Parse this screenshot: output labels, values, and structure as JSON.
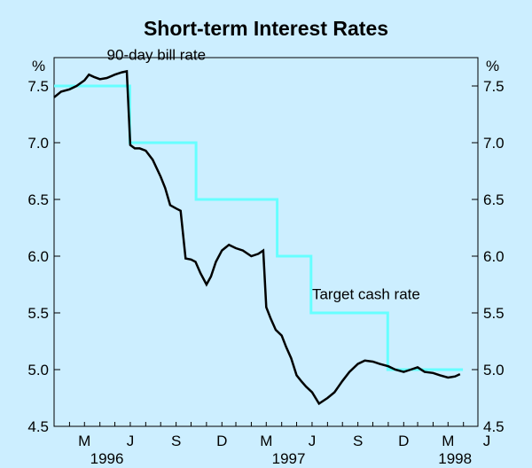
{
  "chart_data": {
    "type": "line",
    "title": "Short-term Interest Rates",
    "ylabel_left": "%",
    "ylabel_right": "%",
    "ylim": [
      4.5,
      7.75
    ],
    "yticks": [
      4.5,
      5.0,
      5.5,
      6.0,
      6.5,
      7.0,
      7.5
    ],
    "ytick_labels": [
      "4.5",
      "5.0",
      "5.5",
      "6.0",
      "6.5",
      "7.0",
      "7.5"
    ],
    "xlim": [
      "1996-03-01",
      "1998-06-30"
    ],
    "xtick_labels": [
      "M",
      "J",
      "S",
      "D",
      "M",
      "J",
      "S",
      "D",
      "M",
      "J"
    ],
    "xtick_dates": [
      "1996-05-01",
      "1996-08-01",
      "1996-11-01",
      "1997-02-01",
      "1997-05-01",
      "1997-08-01",
      "1997-11-01",
      "1998-02-01",
      "1998-05-01",
      "1998-08-01"
    ],
    "year_labels": [
      {
        "label": "1996",
        "date": "1996-06-15"
      },
      {
        "label": "1997",
        "date": "1997-06-15"
      },
      {
        "label": "1998",
        "date": "1998-05-15"
      }
    ],
    "grid": false,
    "series": [
      {
        "name": "90-day bill rate",
        "color": "#000000",
        "x": [
          "1996-03-01",
          "1996-03-15",
          "1996-04-01",
          "1996-04-15",
          "1996-05-01",
          "1996-05-10",
          "1996-05-20",
          "1996-06-01",
          "1996-06-15",
          "1996-07-01",
          "1996-07-15",
          "1996-07-25",
          "1996-08-01",
          "1996-08-10",
          "1996-08-20",
          "1996-09-01",
          "1996-09-15",
          "1996-10-01",
          "1996-10-10",
          "1996-10-20",
          "1996-11-01",
          "1996-11-10",
          "1996-11-20",
          "1996-12-01",
          "1996-12-10",
          "1996-12-20",
          "1997-01-01",
          "1997-01-10",
          "1997-01-20",
          "1997-02-01",
          "1997-02-15",
          "1997-03-01",
          "1997-03-15",
          "1997-04-01",
          "1997-04-15",
          "1997-04-25",
          "1997-05-01",
          "1997-05-10",
          "1997-05-20",
          "1997-06-01",
          "1997-06-10",
          "1997-06-20",
          "1997-07-01",
          "1997-07-10",
          "1997-07-20",
          "1997-08-01",
          "1997-08-15",
          "1997-09-01",
          "1997-09-15",
          "1997-10-01",
          "1997-10-15",
          "1997-11-01",
          "1997-11-15",
          "1997-12-01",
          "1997-12-15",
          "1998-01-01",
          "1998-01-15",
          "1998-02-01",
          "1998-02-15",
          "1998-03-01",
          "1998-03-15",
          "1998-04-01",
          "1998-04-15",
          "1998-05-01",
          "1998-05-15",
          "1998-05-25"
        ],
        "y": [
          7.4,
          7.45,
          7.47,
          7.5,
          7.55,
          7.6,
          7.58,
          7.56,
          7.57,
          7.6,
          7.62,
          7.63,
          6.98,
          6.95,
          6.95,
          6.93,
          6.85,
          6.7,
          6.6,
          6.45,
          6.42,
          6.4,
          5.98,
          5.97,
          5.95,
          5.85,
          5.75,
          5.82,
          5.95,
          6.05,
          6.1,
          6.07,
          6.05,
          6.0,
          6.02,
          6.05,
          5.55,
          5.45,
          5.35,
          5.3,
          5.2,
          5.1,
          4.95,
          4.9,
          4.85,
          4.8,
          4.7,
          4.75,
          4.8,
          4.9,
          4.98,
          5.05,
          5.08,
          5.07,
          5.05,
          5.03,
          5.0,
          4.98,
          5.0,
          5.02,
          4.98,
          4.97,
          4.95,
          4.93,
          4.94,
          4.96
        ]
      },
      {
        "name": "Target cash rate",
        "color": "#66ffff",
        "x": [
          "1996-03-01",
          "1996-07-31",
          "1996-07-31",
          "1996-12-11",
          "1996-12-11",
          "1997-05-23",
          "1997-05-23",
          "1997-07-30",
          "1997-07-30",
          "1997-12-31",
          "1997-12-31",
          "1998-05-31"
        ],
        "y": [
          7.5,
          7.5,
          7.0,
          7.0,
          6.5,
          6.5,
          6.0,
          6.0,
          5.5,
          5.5,
          5.0,
          5.0
        ]
      }
    ],
    "annotations": [
      {
        "text": "90-day bill rate",
        "x": "1996-06-15",
        "y": 7.73
      },
      {
        "text": "Target cash rate",
        "x": "1997-08-01",
        "y": 5.62
      }
    ]
  }
}
